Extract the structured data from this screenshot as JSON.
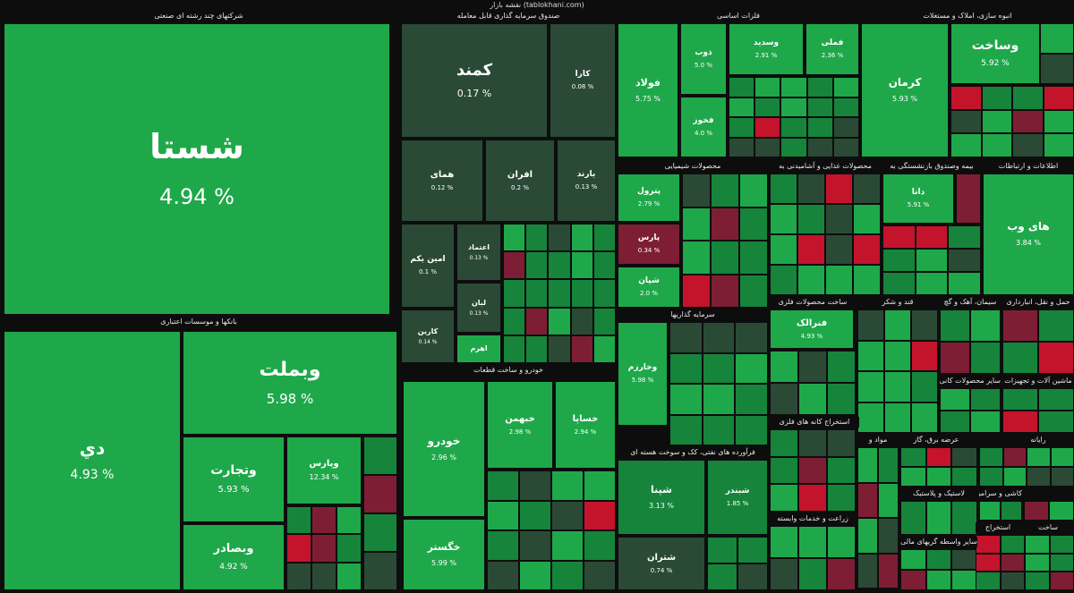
{
  "page_title": "نقشه بازار (tablokhani.com)",
  "colors": {
    "up_bright": "#1fa84a",
    "up_mid": "#16843b",
    "flat": "#2a4a36",
    "down": "#7e1e34",
    "down_bright": "#c4142c"
  },
  "chart_data": {
    "type": "treemap",
    "title": "نقشه بازار (tablokhani.com)",
    "sectors": [
      {
        "name": "شرکتهای چند رشته ای صنعتی",
        "items": [
          {
            "name": "شستا",
            "value": "4.94 %",
            "tone": "up_bright"
          }
        ]
      },
      {
        "name": "بانکها و موسسات اعتباری",
        "items": [
          {
            "name": "دي",
            "value": "4.93 %",
            "tone": "up_bright"
          },
          {
            "name": "وبملت",
            "value": "5.98 %",
            "tone": "up_bright"
          },
          {
            "name": "وتجارت",
            "value": "5.93 %",
            "tone": "up_bright"
          },
          {
            "name": "وبصادر",
            "value": "4.92 %",
            "tone": "up_bright"
          },
          {
            "name": "وپارس",
            "value": "12.34 %",
            "tone": "up_bright"
          }
        ]
      },
      {
        "name": "صندوق سرمایه گذاری قابل معامله",
        "items": [
          {
            "name": "کمند",
            "value": "0.17 %",
            "tone": "flat"
          },
          {
            "name": "کارا",
            "value": "0.08 %",
            "tone": "flat"
          },
          {
            "name": "همای",
            "value": "0.12 %",
            "tone": "flat"
          },
          {
            "name": "افران",
            "value": "0.2 %",
            "tone": "flat"
          },
          {
            "name": "یارند",
            "value": "0.13 %",
            "tone": "flat"
          },
          {
            "name": "امین یکم",
            "value": "0.1 %",
            "tone": "flat"
          },
          {
            "name": "اعتماد",
            "value": "0.13 %",
            "tone": "flat"
          },
          {
            "name": "لبان",
            "value": "0.13 %",
            "tone": "flat"
          },
          {
            "name": "کارین",
            "value": "0.14 %",
            "tone": "flat"
          },
          {
            "name": "اهرم",
            "value": "",
            "tone": "up_bright"
          }
        ]
      },
      {
        "name": "خودرو و ساخت قطعات",
        "items": [
          {
            "name": "خودرو",
            "value": "2.96 %",
            "tone": "up_bright"
          },
          {
            "name": "خساپا",
            "value": "2.94 %",
            "tone": "up_bright"
          },
          {
            "name": "خبهمن",
            "value": "2.98 %",
            "tone": "up_bright"
          },
          {
            "name": "خگستر",
            "value": "5.99 %",
            "tone": "up_bright"
          }
        ]
      },
      {
        "name": "فلزات اساسی",
        "items": [
          {
            "name": "فولاد",
            "value": "5.75 %",
            "tone": "up_bright"
          },
          {
            "name": "ذوب",
            "value": "5.0 %",
            "tone": "up_bright"
          },
          {
            "name": "فخوز",
            "value": "4.0 %",
            "tone": "up_bright"
          },
          {
            "name": "وسدید",
            "value": "2.91 %",
            "tone": "up_bright"
          },
          {
            "name": "فملی",
            "value": "2.36 %",
            "tone": "up_bright"
          }
        ]
      },
      {
        "name": "انبوه سازی، املاک و مستغلات",
        "items": [
          {
            "name": "وساخت",
            "value": "5.92 %",
            "tone": "up_bright"
          },
          {
            "name": "کرمان",
            "value": "5.93 %",
            "tone": "up_bright"
          }
        ]
      },
      {
        "name": "محصولات شیمیایی",
        "items": [
          {
            "name": "پترول",
            "value": "2.79 %",
            "tone": "up_bright"
          },
          {
            "name": "پارس",
            "value": "0.34 %",
            "tone": "down"
          },
          {
            "name": "شپان",
            "value": "2.0 %",
            "tone": "up_bright"
          }
        ]
      },
      {
        "name": "محصولات غذایی و آشامیدنی به",
        "items": []
      },
      {
        "name": "بیمه وصندوق بازنشستگی به",
        "items": [
          {
            "name": "دانا",
            "value": "5.91 %",
            "tone": "up_bright"
          }
        ]
      },
      {
        "name": "اطلاعات و ارتباطات",
        "items": [
          {
            "name": "های وب",
            "value": "3.84 %",
            "tone": "up_bright"
          }
        ]
      },
      {
        "name": "سرمایه گذاریها",
        "items": [
          {
            "name": "وخارزم",
            "value": "5.98 %",
            "tone": "up_bright"
          }
        ]
      },
      {
        "name": "ساخت محصولات فلزی",
        "items": [
          {
            "name": "فنرالک",
            "value": "4.93 %",
            "tone": "up_bright"
          }
        ]
      },
      {
        "name": "قند و شکر",
        "items": []
      },
      {
        "name": "سیمان، آهک و گچ",
        "items": []
      },
      {
        "name": "حمل و نقل، انبارداری",
        "items": []
      },
      {
        "name": "فرآورده های نفتی، کک و سوخت هسته ای",
        "items": [
          {
            "name": "شپنا",
            "value": "3.13 %",
            "tone": "up_mid"
          },
          {
            "name": "شبندر",
            "value": "1.85 %",
            "tone": "up_mid"
          },
          {
            "name": "شتران",
            "value": "0.74 %",
            "tone": "flat"
          }
        ]
      },
      {
        "name": "استخراج کانه های فلزی",
        "items": []
      },
      {
        "name": "ماشین آلات و تجهیزات",
        "items": []
      },
      {
        "name": "سایر محصولات کانی",
        "items": []
      },
      {
        "name": "رایانه",
        "items": []
      },
      {
        "name": "مواد و",
        "items": []
      },
      {
        "name": "عرضه برق، گاز",
        "items": []
      },
      {
        "name": "لاستیک و پلاستیک",
        "items": []
      },
      {
        "name": "سایر واسطه گریهای مالی",
        "items": []
      },
      {
        "name": "زراعت و خدمات وابسته",
        "items": []
      },
      {
        "name": "کاشی و سرامیک",
        "items": []
      },
      {
        "name": "استخراج",
        "items": []
      },
      {
        "name": "ساخت",
        "items": []
      }
    ]
  }
}
